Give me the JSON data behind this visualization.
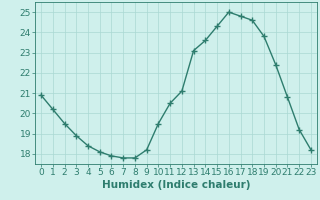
{
  "x": [
    0,
    1,
    2,
    3,
    4,
    5,
    6,
    7,
    8,
    9,
    10,
    11,
    12,
    13,
    14,
    15,
    16,
    17,
    18,
    19,
    20,
    21,
    22,
    23
  ],
  "y": [
    20.9,
    20.2,
    19.5,
    18.9,
    18.4,
    18.1,
    17.9,
    17.8,
    17.8,
    18.2,
    19.5,
    20.5,
    21.1,
    23.1,
    23.6,
    24.3,
    25.0,
    24.8,
    24.6,
    23.8,
    22.4,
    20.8,
    19.2,
    18.2
  ],
  "line_color": "#2e7d6e",
  "marker": "+",
  "marker_size": 4,
  "marker_linewidth": 1.0,
  "line_width": 1.0,
  "xlabel": "Humidex (Indice chaleur)",
  "xlim": [
    -0.5,
    23.5
  ],
  "ylim": [
    17.5,
    25.5
  ],
  "yticks": [
    18,
    19,
    20,
    21,
    22,
    23,
    24,
    25
  ],
  "xticks": [
    0,
    1,
    2,
    3,
    4,
    5,
    6,
    7,
    8,
    9,
    10,
    11,
    12,
    13,
    14,
    15,
    16,
    17,
    18,
    19,
    20,
    21,
    22,
    23
  ],
  "bg_color": "#cff0ec",
  "grid_color": "#aad8d3",
  "line_and_text_color": "#2e7d6e",
  "tick_fontsize": 6.5,
  "xlabel_fontsize": 7.5
}
